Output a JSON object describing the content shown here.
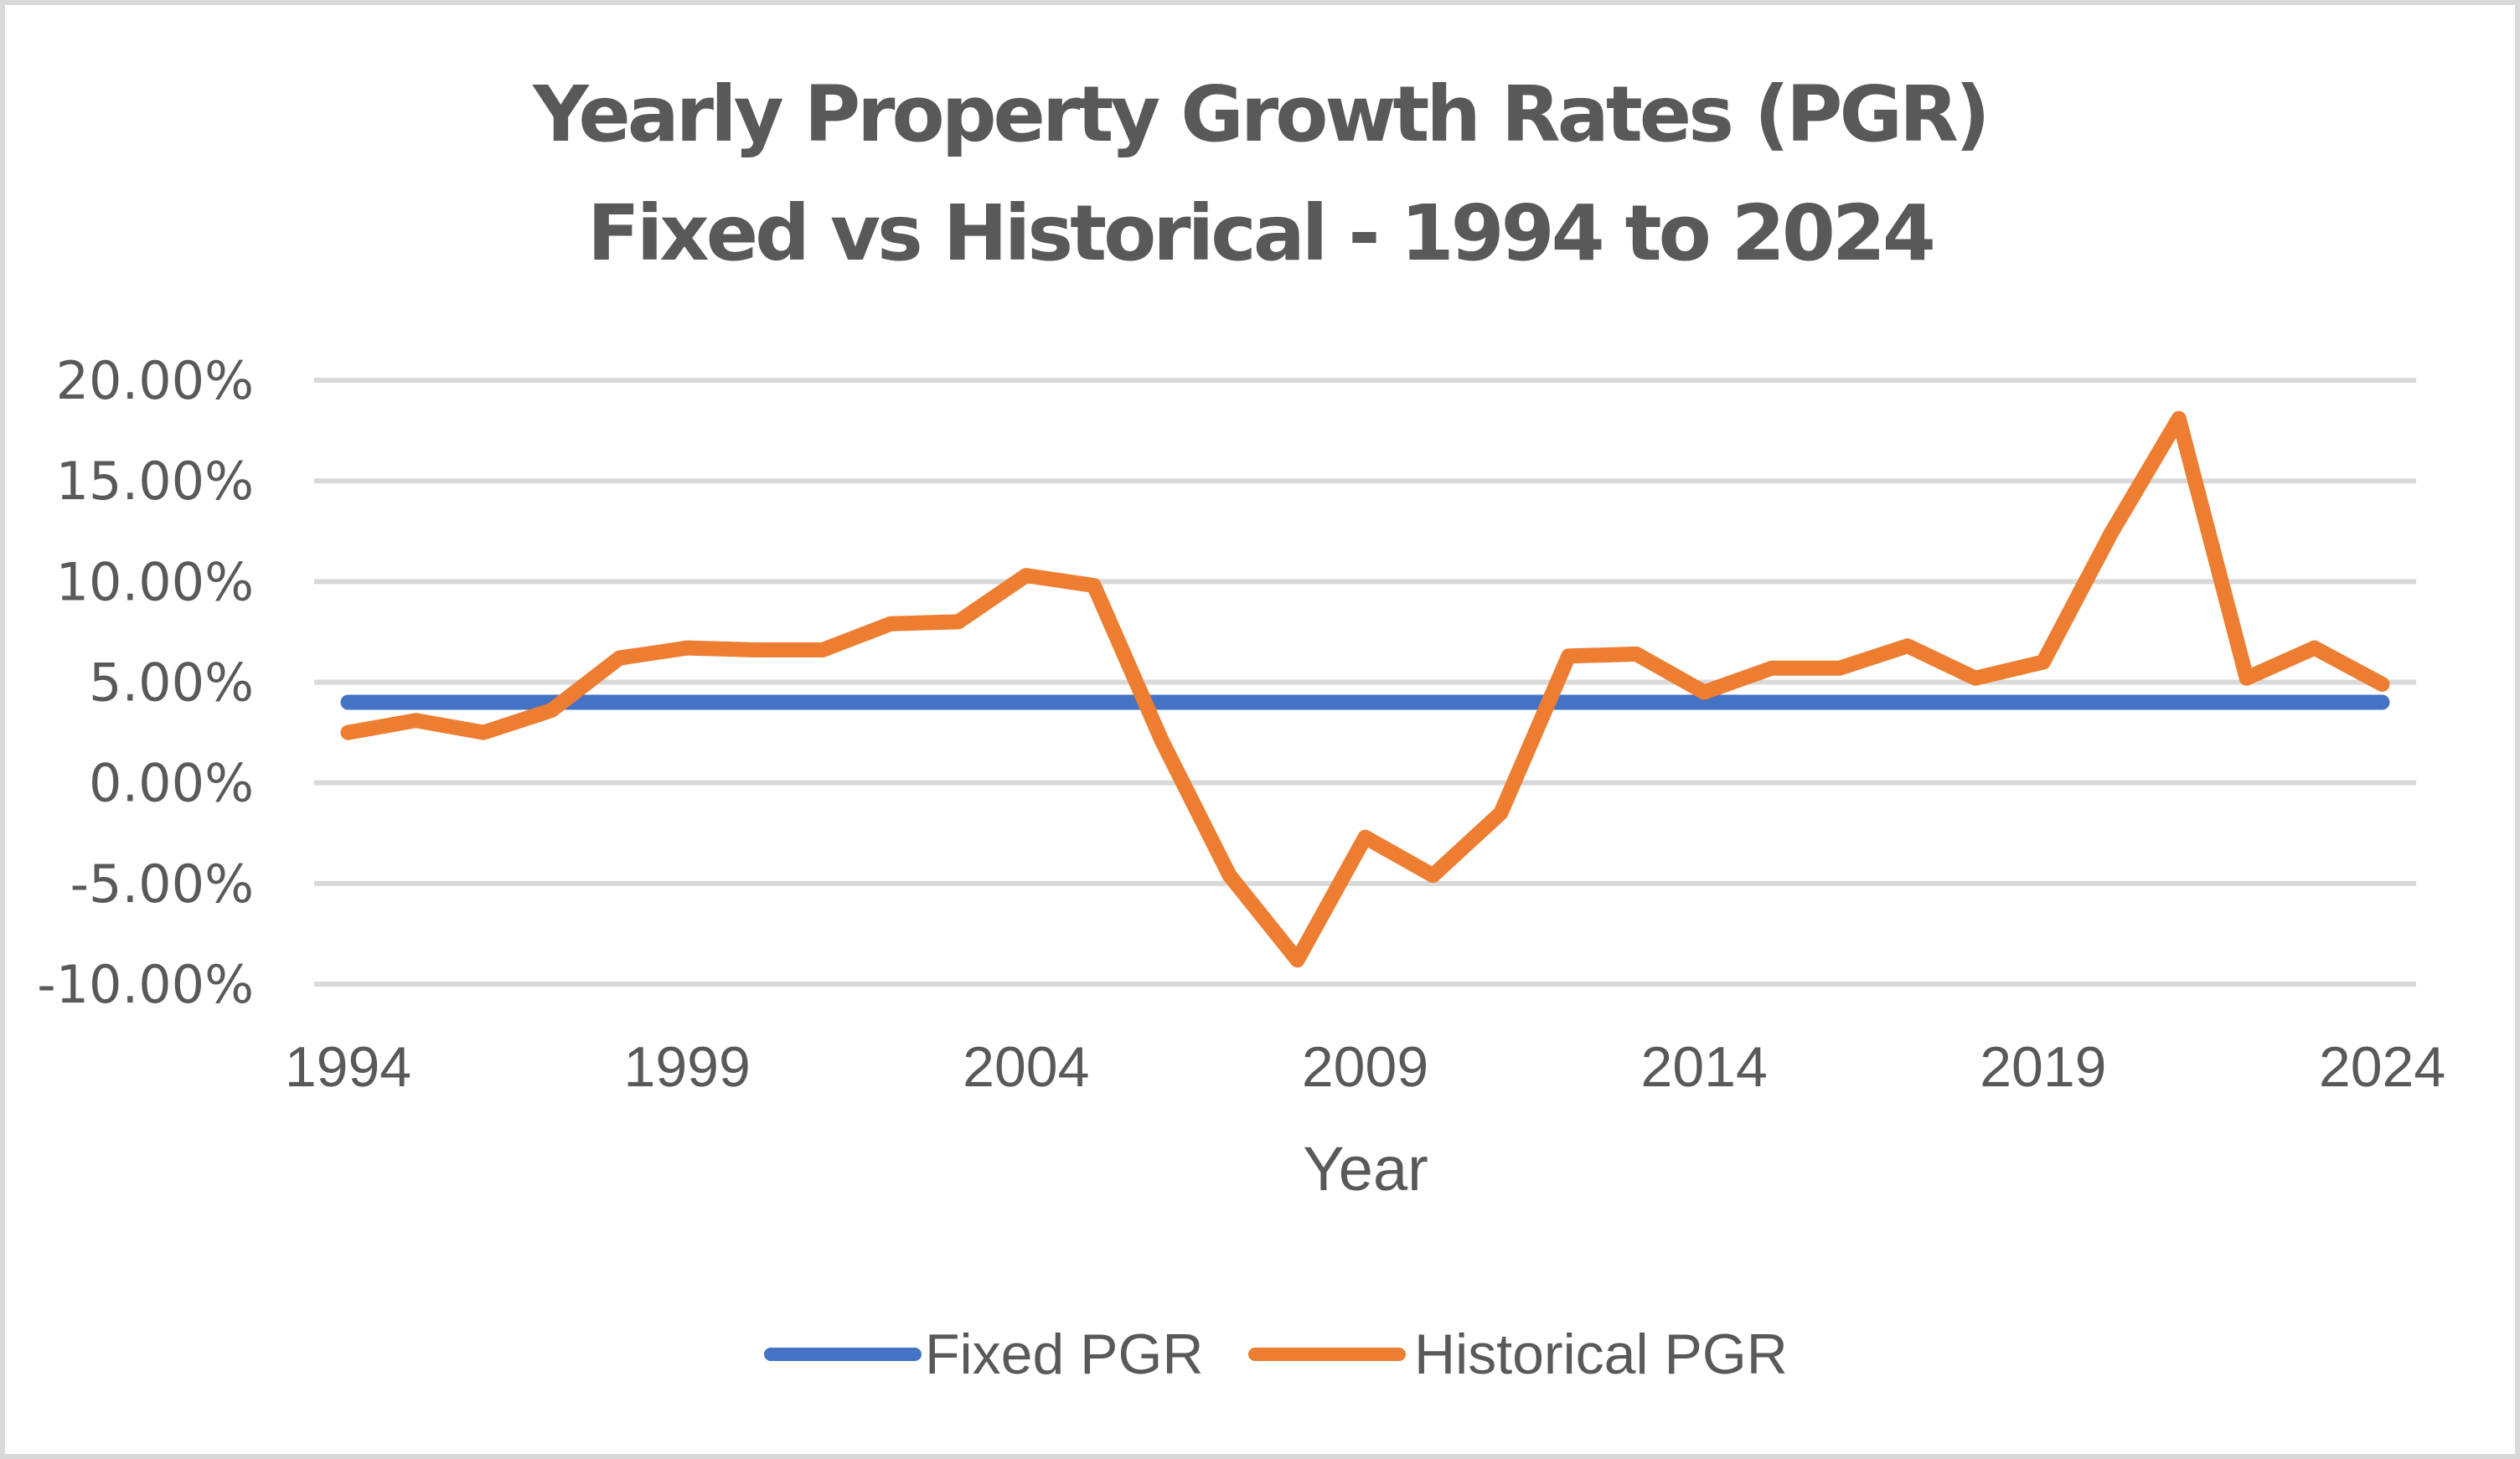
{
  "chart_data": {
    "type": "line",
    "title": [
      "Yearly Property Growth Rates (PGR)",
      "Fixed vs Historical - 1994 to 2024"
    ],
    "xlabel": "Year",
    "ylabel": "",
    "x": [
      1994,
      1995,
      1996,
      1997,
      1998,
      1999,
      2000,
      2001,
      2002,
      2003,
      2004,
      2005,
      2006,
      2007,
      2008,
      2009,
      2010,
      2011,
      2012,
      2013,
      2014,
      2015,
      2016,
      2017,
      2018,
      2019,
      2020,
      2021,
      2022,
      2023,
      2024
    ],
    "x_tick_labels": [
      "1994",
      "1999",
      "2004",
      "2009",
      "2014",
      "2019",
      "2024"
    ],
    "x_tick_values": [
      1994,
      1999,
      2004,
      2009,
      2014,
      2019,
      2024
    ],
    "ylim": [
      -10,
      20
    ],
    "y_ticks": [
      20,
      15,
      10,
      5,
      0,
      -5,
      -10
    ],
    "y_tick_labels": [
      "20.00%",
      "15.00%",
      "10.00%",
      "5.00%",
      "0.00%",
      "-5.00%",
      "-10.00%"
    ],
    "y_unit": "percent",
    "grid": true,
    "legend_position": "bottom",
    "series": [
      {
        "name": "Fixed PGR",
        "color": "#4472c4",
        "values": [
          4,
          4,
          4,
          4,
          4,
          4,
          4,
          4,
          4,
          4,
          4,
          4,
          4,
          4,
          4,
          4,
          4,
          4,
          4,
          4,
          4,
          4,
          4,
          4,
          4,
          4,
          4,
          4,
          4,
          4,
          4
        ]
      },
      {
        "name": "Historical PGR",
        "color": "#ed7d31",
        "values": [
          2.5,
          3.1,
          2.5,
          3.6,
          6.2,
          6.7,
          6.6,
          6.6,
          7.9,
          8.0,
          10.3,
          9.8,
          2.1,
          -4.6,
          -8.8,
          -2.7,
          -4.6,
          -1.5,
          6.3,
          6.4,
          4.5,
          5.7,
          5.7,
          6.8,
          5.2,
          6.0,
          12.4,
          18.1,
          5.2,
          6.7,
          4.9
        ]
      }
    ]
  }
}
